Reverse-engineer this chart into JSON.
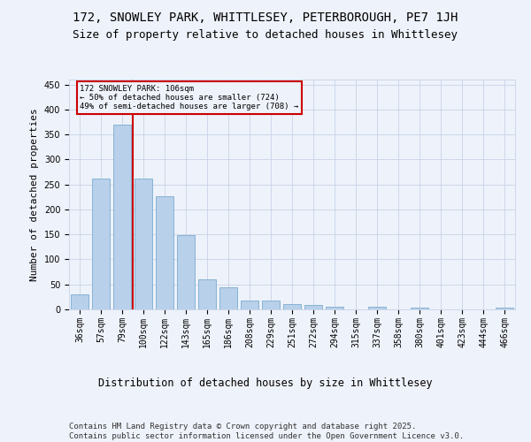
{
  "title1": "172, SNOWLEY PARK, WHITTLESEY, PETERBOROUGH, PE7 1JH",
  "title2": "Size of property relative to detached houses in Whittlesey",
  "xlabel": "Distribution of detached houses by size in Whittlesey",
  "ylabel": "Number of detached properties",
  "categories": [
    "36sqm",
    "57sqm",
    "79sqm",
    "100sqm",
    "122sqm",
    "143sqm",
    "165sqm",
    "186sqm",
    "208sqm",
    "229sqm",
    "251sqm",
    "272sqm",
    "294sqm",
    "315sqm",
    "337sqm",
    "358sqm",
    "380sqm",
    "401sqm",
    "423sqm",
    "444sqm",
    "466sqm"
  ],
  "values": [
    30,
    262,
    370,
    262,
    226,
    148,
    60,
    45,
    18,
    18,
    10,
    8,
    6,
    0,
    5,
    0,
    3,
    0,
    0,
    0,
    4
  ],
  "bar_color": "#b8d0ea",
  "bar_edgecolor": "#7aacd0",
  "vline_x": 2.5,
  "vline_color": "#cc0000",
  "annotation_line1": "172 SNOWLEY PARK: 106sqm",
  "annotation_line2": "← 50% of detached houses are smaller (724)",
  "annotation_line3": "49% of semi-detached houses are larger (708) →",
  "ylim": [
    0,
    460
  ],
  "yticks": [
    0,
    50,
    100,
    150,
    200,
    250,
    300,
    350,
    400,
    450
  ],
  "bg_color": "#eef2fa",
  "grid_color": "#c8d4e8",
  "footer": "Contains HM Land Registry data © Crown copyright and database right 2025.\nContains public sector information licensed under the Open Government Licence v3.0.",
  "title1_fontsize": 10,
  "title2_fontsize": 9,
  "xlabel_fontsize": 8.5,
  "ylabel_fontsize": 8,
  "tick_fontsize": 7,
  "footer_fontsize": 6.5
}
